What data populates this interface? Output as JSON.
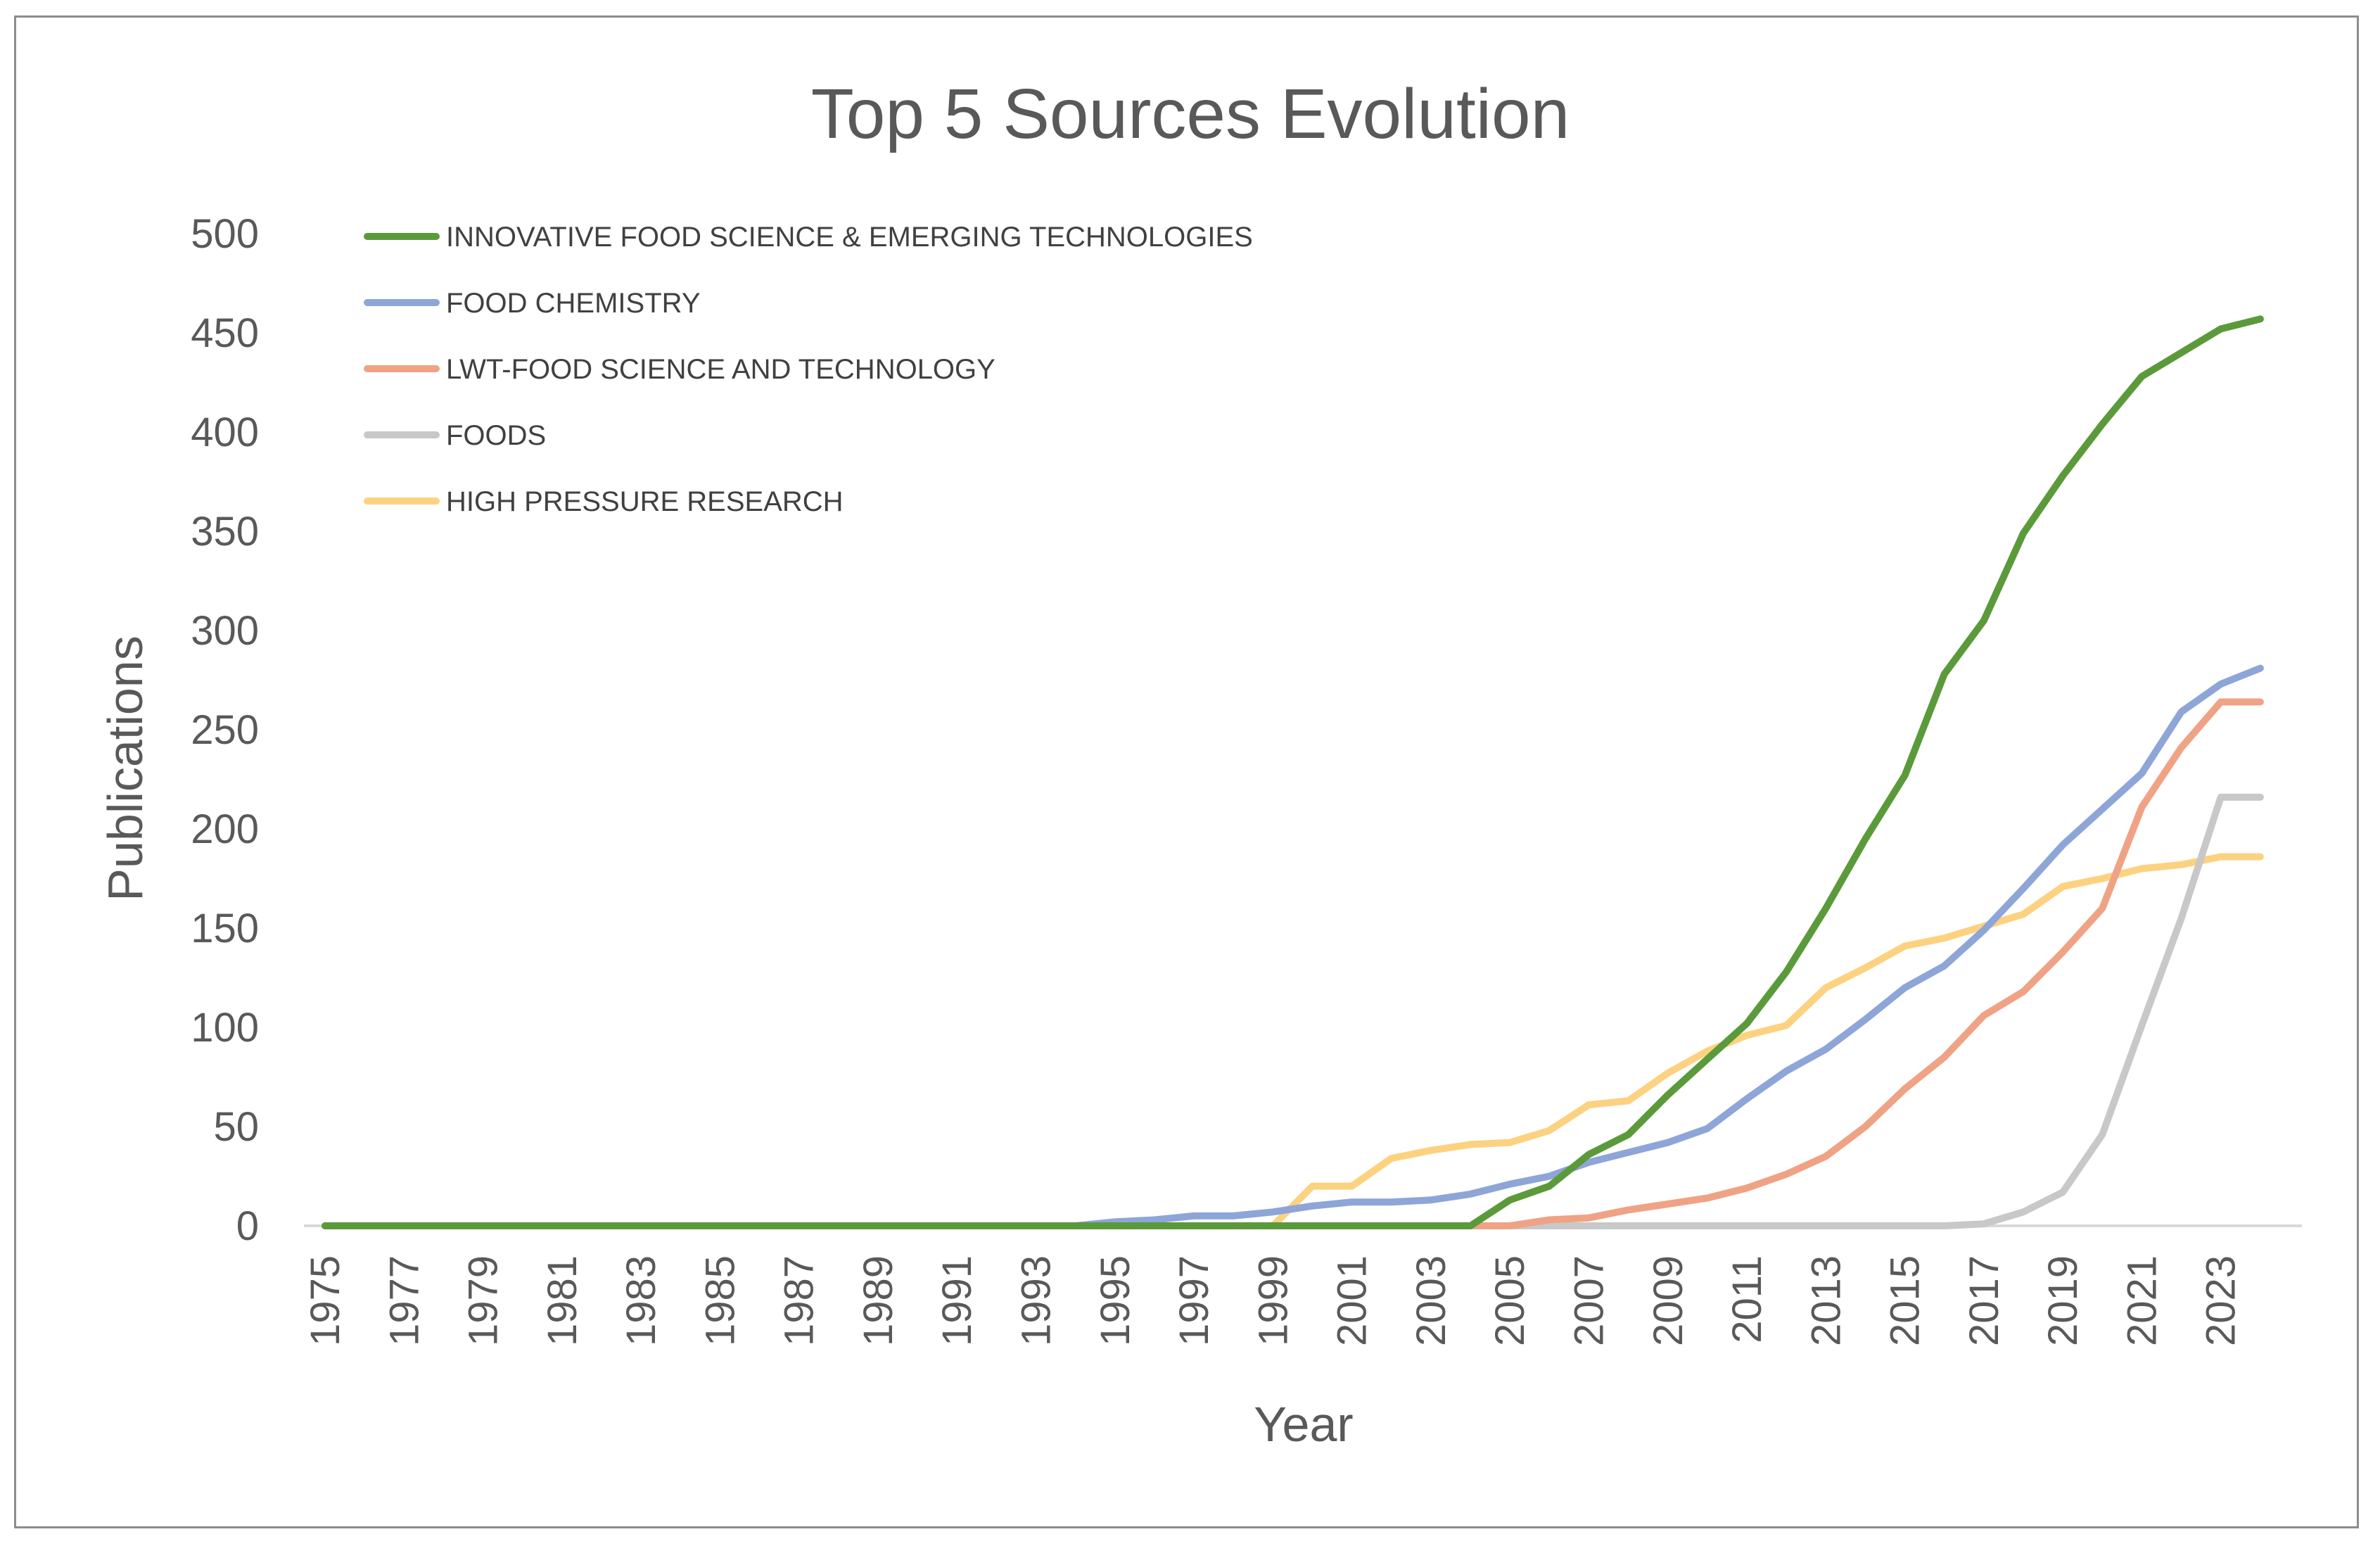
{
  "chart_data": {
    "type": "line",
    "title": "Top 5 Sources Evolution",
    "xlabel": "Year",
    "ylabel": "Publications",
    "ylim": [
      0,
      500
    ],
    "yticks": [
      0,
      50,
      100,
      150,
      200,
      250,
      300,
      350,
      400,
      450,
      500
    ],
    "x": [
      1975,
      1976,
      1977,
      1978,
      1979,
      1980,
      1981,
      1982,
      1983,
      1984,
      1985,
      1986,
      1987,
      1988,
      1989,
      1990,
      1991,
      1992,
      1993,
      1994,
      1995,
      1996,
      1997,
      1998,
      1999,
      2000,
      2001,
      2002,
      2003,
      2004,
      2005,
      2006,
      2007,
      2008,
      2009,
      2010,
      2011,
      2012,
      2013,
      2014,
      2015,
      2016,
      2017,
      2018,
      2019,
      2020,
      2021,
      2022,
      2023,
      2024
    ],
    "xtick_labels": [
      "1975",
      "1977",
      "1979",
      "1981",
      "1983",
      "1985",
      "1987",
      "1989",
      "1991",
      "1993",
      "1995",
      "1997",
      "1999",
      "2001",
      "2003",
      "2005",
      "2007",
      "2009",
      "2011",
      "2013",
      "2015",
      "2017",
      "2019",
      "2021",
      "2023"
    ],
    "grid": false,
    "legend_position": "top-left",
    "series": [
      {
        "name": "INNOVATIVE FOOD SCIENCE & EMERGING TECHNOLOGIES",
        "color": "#5b9a3a",
        "values": [
          0,
          0,
          0,
          0,
          0,
          0,
          0,
          0,
          0,
          0,
          0,
          0,
          0,
          0,
          0,
          0,
          0,
          0,
          0,
          0,
          0,
          0,
          0,
          0,
          0,
          0,
          0,
          0,
          0,
          0,
          13,
          20,
          36,
          46,
          66,
          84,
          102,
          128,
          160,
          195,
          227,
          278,
          305,
          349,
          378,
          404,
          428,
          440,
          452,
          457
        ]
      },
      {
        "name": "FOOD CHEMISTRY",
        "color": "#8ea5d8",
        "values": [
          0,
          0,
          0,
          0,
          0,
          0,
          0,
          0,
          0,
          0,
          0,
          0,
          0,
          0,
          0,
          0,
          0,
          0,
          0,
          0,
          2,
          3,
          5,
          5,
          7,
          10,
          12,
          12,
          13,
          16,
          21,
          25,
          32,
          37,
          42,
          49,
          64,
          78,
          89,
          104,
          120,
          131,
          149,
          170,
          192,
          210,
          228,
          259,
          273,
          281
        ]
      },
      {
        "name": "LWT-FOOD SCIENCE AND TECHNOLOGY",
        "color": "#f0a285",
        "values": [
          0,
          0,
          0,
          0,
          0,
          0,
          0,
          0,
          0,
          0,
          0,
          0,
          0,
          0,
          0,
          0,
          0,
          0,
          0,
          0,
          0,
          0,
          0,
          0,
          0,
          0,
          0,
          0,
          0,
          0,
          0,
          3,
          4,
          8,
          11,
          14,
          19,
          26,
          35,
          50,
          69,
          85,
          106,
          118,
          138,
          160,
          211,
          241,
          264,
          264
        ]
      },
      {
        "name": "FOODS",
        "color": "#c8c8c8",
        "values": [
          0,
          0,
          0,
          0,
          0,
          0,
          0,
          0,
          0,
          0,
          0,
          0,
          0,
          0,
          0,
          0,
          0,
          0,
          0,
          0,
          0,
          0,
          0,
          0,
          0,
          0,
          0,
          0,
          0,
          0,
          0,
          0,
          0,
          0,
          0,
          0,
          0,
          0,
          0,
          0,
          0,
          0,
          1,
          7,
          17,
          46,
          101,
          155,
          216,
          216
        ]
      },
      {
        "name": "HIGH PRESSURE RESEARCH",
        "color": "#fcd280",
        "values": [
          0,
          0,
          0,
          0,
          0,
          0,
          0,
          0,
          0,
          0,
          0,
          0,
          0,
          0,
          0,
          0,
          0,
          0,
          0,
          0,
          0,
          0,
          0,
          0,
          0,
          20,
          20,
          34,
          38,
          41,
          42,
          48,
          61,
          63,
          77,
          88,
          96,
          101,
          120,
          130,
          141,
          145,
          151,
          157,
          171,
          175,
          180,
          182,
          186,
          186
        ]
      }
    ]
  }
}
